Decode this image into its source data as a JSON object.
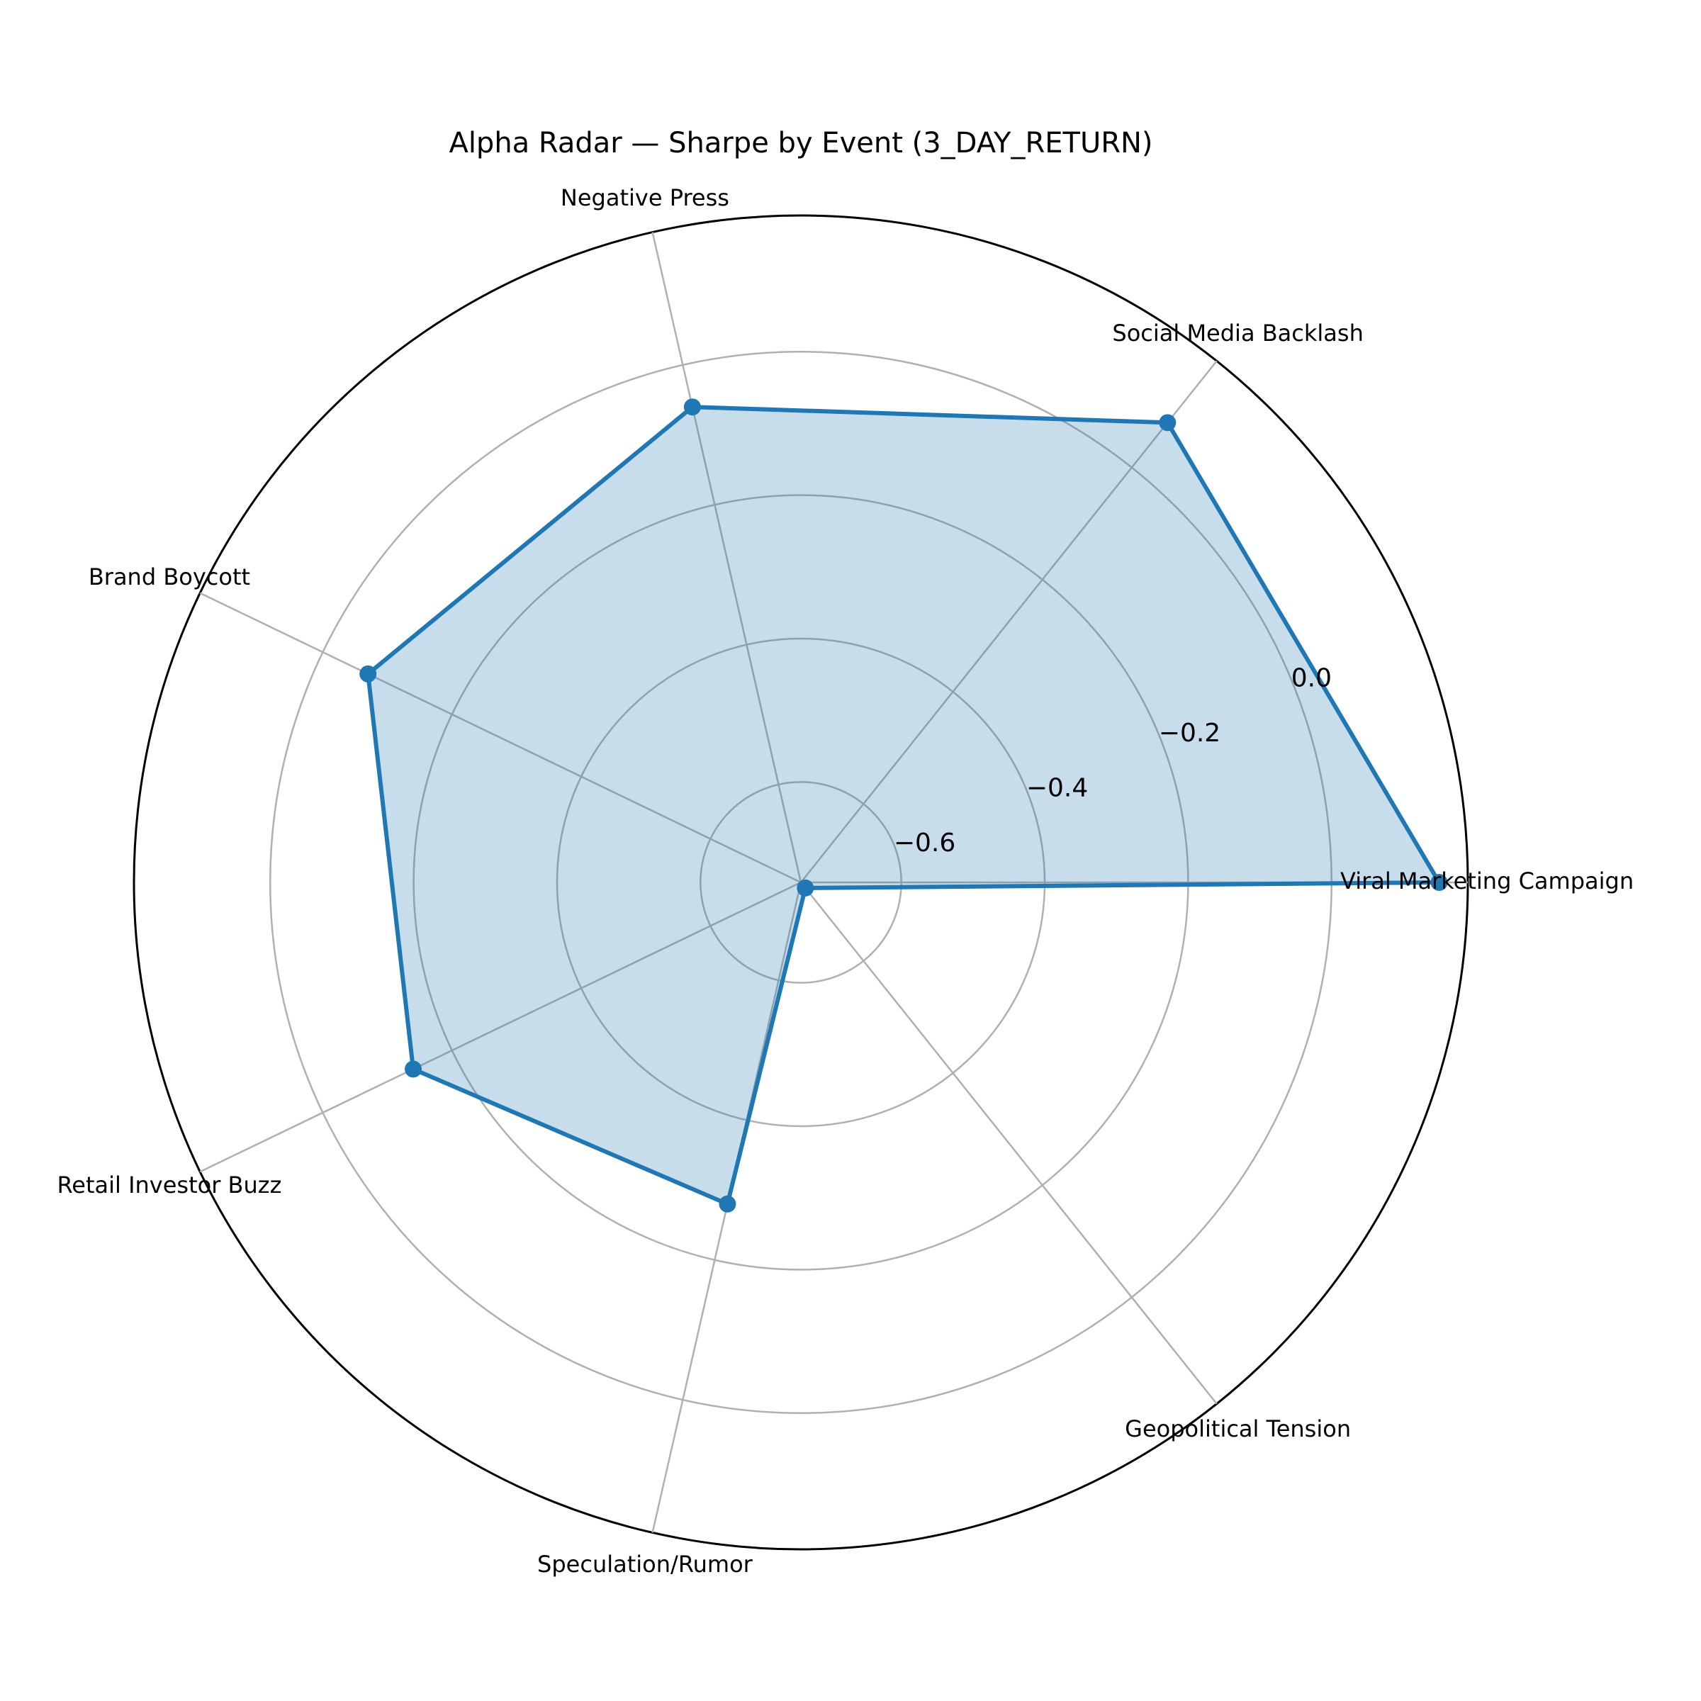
{
  "chart_data": {
    "type": "radar",
    "title": "Alpha Radar — Sharpe by Event (3_DAY_RETURN)",
    "categories": [
      "Viral Marketing Campaign",
      "Social Media Backlash",
      "Negative Press",
      "Brand Boycott",
      "Retail Investor Buzz",
      "Speculation/Rumor",
      "Geopolitical Tension"
    ],
    "series": [
      {
        "values": [
          0.15,
          0.08,
          -0.06,
          -0.07,
          -0.14,
          -0.28,
          -0.73
        ]
      }
    ],
    "rlim": [
      -0.74,
      0.19
    ],
    "rticks": [
      -0.6,
      -0.4,
      -0.2,
      0.0
    ],
    "rtick_labels": [
      "−0.6",
      "−0.4",
      "−0.2",
      "0.0"
    ],
    "line_color": "#1f77b4",
    "fill_color": "#1f77b4",
    "grid": true
  }
}
